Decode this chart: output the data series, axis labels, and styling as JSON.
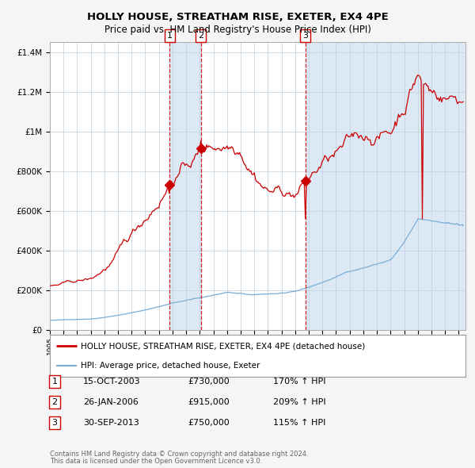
{
  "title": "HOLLY HOUSE, STREATHAM RISE, EXETER, EX4 4PE",
  "subtitle": "Price paid vs. HM Land Registry's House Price Index (HPI)",
  "legend_label_red": "HOLLY HOUSE, STREATHAM RISE, EXETER, EX4 4PE (detached house)",
  "legend_label_blue": "HPI: Average price, detached house, Exeter",
  "transactions": [
    {
      "num": 1,
      "date": "15-OCT-2003",
      "price": 730000,
      "hpi_pct": "170% ↑ HPI"
    },
    {
      "num": 2,
      "date": "26-JAN-2006",
      "price": 915000,
      "hpi_pct": "209% ↑ HPI"
    },
    {
      "num": 3,
      "date": "30-SEP-2013",
      "price": 750000,
      "hpi_pct": "115% ↑ HPI"
    }
  ],
  "transaction_dates_decimal": [
    2003.79,
    2006.07,
    2013.75
  ],
  "transaction_prices": [
    730000,
    915000,
    750000
  ],
  "footer_line1": "Contains HM Land Registry data © Crown copyright and database right 2024.",
  "footer_line2": "This data is licensed under the Open Government Licence v3.0.",
  "ylim": [
    0,
    1450000
  ],
  "xlim_start": 1995.0,
  "xlim_end": 2025.5,
  "red_color": "#cc0000",
  "blue_color": "#7aaed6",
  "plot_bg_color": "#ffffff",
  "grid_color": "#c0cfe0",
  "shade_color": "#dce9f5",
  "fig_bg_color": "#f5f5f5"
}
